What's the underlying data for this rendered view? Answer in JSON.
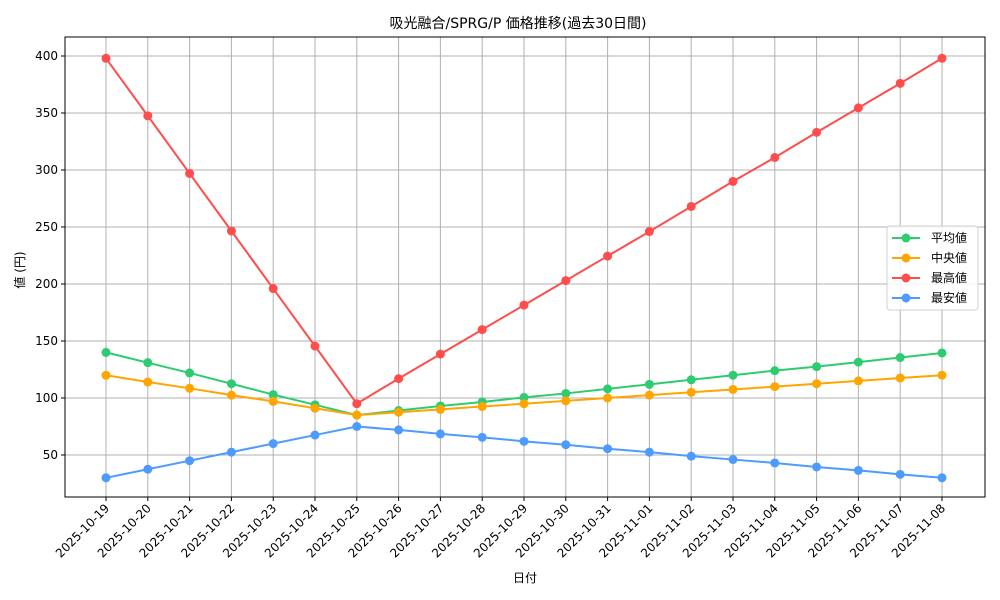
{
  "chart_data": {
    "type": "line",
    "title": "吸光融合/SPRG/P 価格推移(過去30日間)",
    "xlabel": "日付",
    "ylabel": "値 (円)",
    "ylim": [
      11,
      416
    ],
    "yticks": [
      50,
      100,
      150,
      200,
      250,
      300,
      350,
      400
    ],
    "grid": true,
    "legend_position": "center right",
    "categories": [
      "2025-10-19",
      "2025-10-20",
      "2025-10-21",
      "2025-10-22",
      "2025-10-23",
      "2025-10-24",
      "2025-10-25",
      "2025-10-26",
      "2025-10-27",
      "2025-10-28",
      "2025-10-29",
      "2025-10-30",
      "2025-10-31",
      "2025-11-01",
      "2025-11-02",
      "2025-11-03",
      "2025-11-04",
      "2025-11-05",
      "2025-11-06",
      "2025-11-07",
      "2025-11-08"
    ],
    "series": [
      {
        "name": "平均値",
        "color": "#2ecc71",
        "values": [
          140,
          131,
          122,
          112.5,
          103,
          94,
          85,
          89,
          93,
          96.5,
          100.5,
          104,
          108,
          112,
          116,
          120,
          124,
          127.5,
          131.5,
          135.5,
          139.5
        ]
      },
      {
        "name": "中央値",
        "color": "#ffa500",
        "values": [
          120,
          114,
          108.5,
          102.5,
          97,
          91,
          85,
          87.5,
          90,
          92.5,
          95,
          97.5,
          100,
          102.5,
          105,
          107.5,
          110,
          112.5,
          115,
          117.5,
          120
        ]
      },
      {
        "name": "最高値",
        "color": "#ff4d4d",
        "values": [
          398,
          347.5,
          297,
          246.5,
          196,
          145.5,
          95,
          117,
          138.5,
          160,
          181.5,
          203,
          224.5,
          246,
          268,
          290,
          311,
          333,
          354.5,
          376,
          398
        ]
      },
      {
        "name": "最安値",
        "color": "#4d9bff",
        "values": [
          30,
          37.5,
          45,
          52.5,
          60,
          67.5,
          75,
          72,
          68.5,
          65.5,
          62,
          59,
          55.5,
          52.5,
          49,
          46,
          43,
          39.5,
          36.5,
          33,
          30
        ]
      }
    ]
  }
}
